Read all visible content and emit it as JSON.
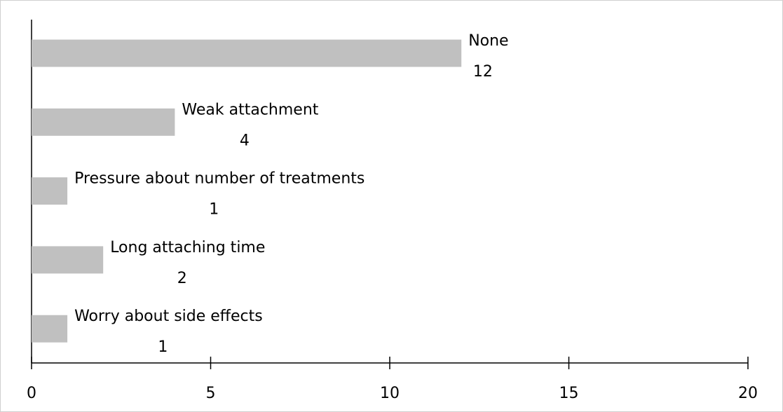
{
  "chart_data": {
    "type": "bar",
    "orientation": "horizontal",
    "categories": [
      "None",
      "Weak attachment",
      "Pressure about number of treatments",
      "Long attaching time",
      "Worry about side effects"
    ],
    "values": [
      12,
      4,
      1,
      2,
      1
    ],
    "color": "#c0c0c0",
    "xlim": [
      0,
      20
    ],
    "xticks": [
      0,
      5,
      10,
      15,
      20
    ],
    "grid": false
  }
}
